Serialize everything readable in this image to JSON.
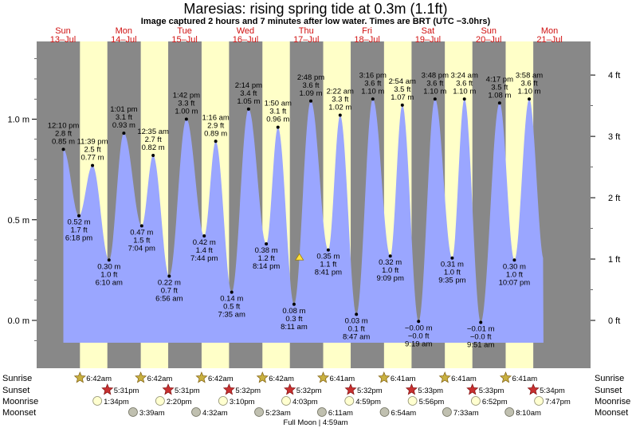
{
  "header": {
    "title": "Maresias: rising  spring tide at 0.3m (1.1ft)",
    "subtitle": "Image captured 2 hours and 7 minutes after low water. Times are BRT (UTC −3.0hrs)"
  },
  "chart_data": {
    "type": "area",
    "left_axis": {
      "unit": "m",
      "ticks": [
        "1.0 m",
        "0.5 m",
        "0.0 m"
      ],
      "values": [
        1.0,
        0.5,
        0.0
      ]
    },
    "right_axis": {
      "unit": "ft",
      "ticks": [
        "4 ft",
        "3 ft",
        "2 ft",
        "1 ft",
        "0 ft"
      ],
      "values": [
        4,
        3,
        2,
        1,
        0
      ]
    },
    "ylim_m": [
      -0.11,
      1.38
    ],
    "days": [
      {
        "dow": "Sun",
        "date": "13–Jul",
        "hour": 0
      },
      {
        "dow": "Mon",
        "date": "14–Jul",
        "hour": 24
      },
      {
        "dow": "Tue",
        "date": "15–Jul",
        "hour": 48
      },
      {
        "dow": "Wed",
        "date": "16–Jul",
        "hour": 72
      },
      {
        "dow": "Thu",
        "date": "17–Jul",
        "hour": 96
      },
      {
        "dow": "Fri",
        "date": "18–Jul",
        "hour": 120
      },
      {
        "dow": "Sat",
        "date": "19–Jul",
        "hour": 144
      },
      {
        "dow": "Sun",
        "date": "20–Jul",
        "hour": 168
      },
      {
        "dow": "Mon",
        "date": "21–Jul",
        "hour": 192
      }
    ],
    "daylight": [
      {
        "sunrise_h": 6.7,
        "sunset_h": 17.52
      },
      {
        "sunrise_h": 30.7,
        "sunset_h": 41.52
      },
      {
        "sunrise_h": 54.7,
        "sunset_h": 65.53
      },
      {
        "sunrise_h": 78.7,
        "sunset_h": 89.53
      },
      {
        "sunrise_h": 102.68,
        "sunset_h": 113.53
      },
      {
        "sunrise_h": 126.68,
        "sunset_h": 137.55
      },
      {
        "sunrise_h": 150.68,
        "sunset_h": 161.55
      },
      {
        "sunrise_h": 174.68,
        "sunset_h": 185.57
      }
    ],
    "tides": [
      {
        "t": 0.17,
        "time": "12:10 pm",
        "ft": "2.8 ft",
        "m": 0.85,
        "m_label": "0.85 m",
        "type": "high"
      },
      {
        "t": 6.3,
        "time": "6:18 pm",
        "ft": "1.7 ft",
        "m": 0.52,
        "m_label": "0.52 m",
        "type": "low"
      },
      {
        "t": 11.65,
        "time": "11:39 pm",
        "ft": "2.5 ft",
        "m": 0.77,
        "m_label": "0.77 m",
        "type": "high"
      },
      {
        "t": 18.17,
        "time": "6:10 am",
        "ft": "1.0 ft",
        "m": 0.3,
        "m_label": "0.30 m",
        "type": "low"
      },
      {
        "t": 24.02,
        "time": "1:01 pm",
        "ft": "3.1 ft",
        "m": 0.93,
        "m_label": "0.93 m",
        "type": "high"
      },
      {
        "t": 31.07,
        "time": "7:04 pm",
        "ft": "1.5 ft",
        "m": 0.47,
        "m_label": "0.47 m",
        "type": "low"
      },
      {
        "t": 35.58,
        "time": "12:35 am",
        "ft": "2.7 ft",
        "m": 0.82,
        "m_label": "0.82 m",
        "type": "high"
      },
      {
        "t": 41.93,
        "time": "6:56 am",
        "ft": "0.7 ft",
        "m": 0.22,
        "m_label": "0.22 m",
        "type": "low"
      },
      {
        "t": 48.7,
        "time": "1:42 pm",
        "ft": "3.3 ft",
        "m": 1.0,
        "m_label": "1.00 m",
        "type": "high"
      },
      {
        "t": 55.73,
        "time": "7:44 pm",
        "ft": "1.4 ft",
        "m": 0.42,
        "m_label": "0.42 m",
        "type": "low"
      },
      {
        "t": 60.27,
        "time": "1:16 am",
        "ft": "2.9 ft",
        "m": 0.89,
        "m_label": "0.89 m",
        "type": "high"
      },
      {
        "t": 66.58,
        "time": "7:35 am",
        "ft": "0.5 ft",
        "m": 0.14,
        "m_label": "0.14 m",
        "type": "low"
      },
      {
        "t": 73.23,
        "time": "2:14 pm",
        "ft": "3.4 ft",
        "m": 1.05,
        "m_label": "1.05 m",
        "type": "high"
      },
      {
        "t": 80.23,
        "time": "8:14 pm",
        "ft": "1.2 ft",
        "m": 0.38,
        "m_label": "0.38 m",
        "type": "low"
      },
      {
        "t": 84.83,
        "time": "1:50 am",
        "ft": "3.1 ft",
        "m": 0.96,
        "m_label": "0.96 m",
        "type": "high"
      },
      {
        "t": 91.18,
        "time": "8:11 am",
        "ft": "0.3 ft",
        "m": 0.08,
        "m_label": "0.08 m",
        "type": "low"
      },
      {
        "t": 97.8,
        "time": "2:48 pm",
        "ft": "3.6 ft",
        "m": 1.09,
        "m_label": "1.09 m",
        "type": "high"
      },
      {
        "t": 104.68,
        "time": "8:41 pm",
        "ft": "1.1 ft",
        "m": 0.35,
        "m_label": "0.35 m",
        "type": "low"
      },
      {
        "t": 109.37,
        "time": "2:22 am",
        "ft": "3.3 ft",
        "m": 1.02,
        "m_label": "1.02 m",
        "type": "high"
      },
      {
        "t": 115.78,
        "time": "8:47 am",
        "ft": "0.1 ft",
        "m": 0.03,
        "m_label": "0.03 m",
        "type": "low"
      },
      {
        "t": 122.27,
        "time": "3:16 pm",
        "ft": "3.6 ft",
        "m": 1.1,
        "m_label": "1.10 m",
        "type": "high"
      },
      {
        "t": 129.15,
        "time": "9:09 pm",
        "ft": "1.0 ft",
        "m": 0.32,
        "m_label": "0.32 m",
        "type": "low"
      },
      {
        "t": 133.9,
        "time": "2:54 am",
        "ft": "3.5 ft",
        "m": 1.07,
        "m_label": "1.07 m",
        "type": "high"
      },
      {
        "t": 140.32,
        "time": "9:19 am",
        "ft": "−0.0 ft",
        "m": -0.005,
        "m_label": "−0.00 m",
        "type": "low"
      },
      {
        "t": 146.8,
        "time": "3:48 pm",
        "ft": "3.6 ft",
        "m": 1.1,
        "m_label": "1.10 m",
        "type": "high"
      },
      {
        "t": 153.58,
        "time": "9:35 pm",
        "ft": "1.0 ft",
        "m": 0.31,
        "m_label": "0.31 m",
        "type": "low"
      },
      {
        "t": 158.4,
        "time": "3:24 am",
        "ft": "3.6 ft",
        "m": 1.1,
        "m_label": "1.10 m",
        "type": "high"
      },
      {
        "t": 164.85,
        "time": "9:51 am",
        "ft": "−0.0 ft",
        "m": -0.01,
        "m_label": "−0.01 m",
        "type": "low"
      },
      {
        "t": 172.28,
        "time": "4:17 pm",
        "ft": "3.5 ft",
        "m": 1.08,
        "m_label": "1.08 m",
        "type": "high"
      },
      {
        "t": 178.12,
        "time": "10:07 pm",
        "ft": "1.0 ft",
        "m": 0.3,
        "m_label": "0.30 m",
        "type": "low"
      },
      {
        "t": 183.97,
        "time": "3:58 am",
        "ft": "3.6 ft",
        "m": 1.1,
        "m_label": "1.10 m",
        "type": "high"
      }
    ],
    "current": {
      "t": 93.3,
      "m": 0.3
    },
    "end_t": 189.6
  },
  "rows": {
    "labels": [
      "Sunrise",
      "Sunset",
      "Moonrise",
      "Moonset"
    ],
    "sunrise": [
      {
        "t": 6.7,
        "label": "6:42am"
      },
      {
        "t": 30.7,
        "label": "6:42am"
      },
      {
        "t": 54.7,
        "label": "6:42am"
      },
      {
        "t": 78.7,
        "label": "6:42am"
      },
      {
        "t": 102.68,
        "label": "6:41am"
      },
      {
        "t": 126.68,
        "label": "6:41am"
      },
      {
        "t": 150.68,
        "label": "6:41am"
      },
      {
        "t": 174.68,
        "label": "6:41am"
      }
    ],
    "sunset": [
      {
        "t": 17.52,
        "label": "5:31pm"
      },
      {
        "t": 41.52,
        "label": "5:31pm"
      },
      {
        "t": 65.53,
        "label": "5:32pm"
      },
      {
        "t": 89.53,
        "label": "5:32pm"
      },
      {
        "t": 113.53,
        "label": "5:32pm"
      },
      {
        "t": 137.55,
        "label": "5:33pm"
      },
      {
        "t": 161.55,
        "label": "5:33pm"
      },
      {
        "t": 185.57,
        "label": "5:34pm"
      }
    ],
    "moonrise": [
      {
        "t": 13.57,
        "label": "1:34pm"
      },
      {
        "t": 38.33,
        "label": "2:20pm"
      },
      {
        "t": 63.17,
        "label": "3:10pm"
      },
      {
        "t": 88.05,
        "label": "4:03pm"
      },
      {
        "t": 112.98,
        "label": "4:59pm"
      },
      {
        "t": 137.93,
        "label": "5:56pm"
      },
      {
        "t": 162.87,
        "label": "6:52pm"
      },
      {
        "t": 187.78,
        "label": "7:47pm"
      }
    ],
    "moonset": [
      {
        "t": 27.65,
        "label": "3:39am"
      },
      {
        "t": 52.53,
        "label": "4:32am"
      },
      {
        "t": 77.38,
        "label": "5:23am"
      },
      {
        "t": 102.18,
        "label": "6:11am"
      },
      {
        "t": 126.9,
        "label": "6:54am"
      },
      {
        "t": 151.55,
        "label": "7:33am"
      },
      {
        "t": 176.17,
        "label": "8:10am"
      }
    ],
    "full_moon": "Full Moon | 4:59am"
  },
  "colors": {
    "night": "#888888",
    "day": "#ffffc8",
    "water": "#9aa6ff",
    "day_label": "#d01010",
    "sun_icon": "#c8b040",
    "sunset_icon": "#c83030",
    "moonrise_icon": "#ffffd0",
    "moonset_icon": "#c0c0b0",
    "current_marker": "#ffe040"
  }
}
